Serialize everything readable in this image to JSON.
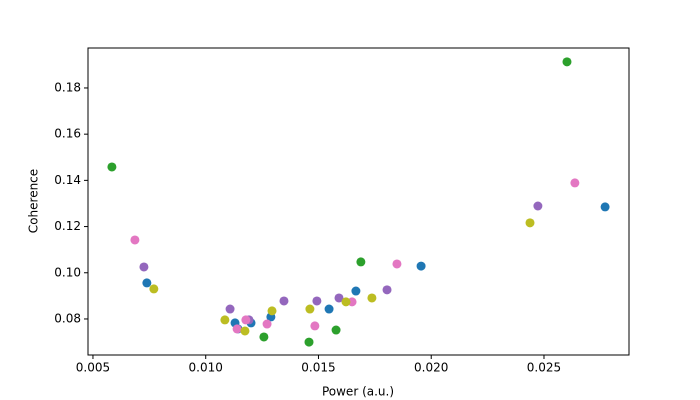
{
  "chart_data": {
    "type": "scatter",
    "xlabel": "Power (a.u.)",
    "ylabel": "Coherence",
    "xlim": [
      0.00478,
      0.02877
    ],
    "ylim": [
      0.0644,
      0.1973
    ],
    "xticks": [
      0.005,
      {
        "value": 0.01,
        "label": "0.010"
      },
      0.015,
      {
        "value": 0.02,
        "label": "0.020"
      },
      0.025
    ],
    "yticks": [
      0.08,
      {
        "value": 0.1,
        "label": "0.10"
      },
      0.12,
      0.14,
      0.16,
      0.18
    ],
    "grid": false,
    "series": [
      {
        "color": "#1f77b4",
        "x": [
          0.00739,
          0.0113,
          0.01143,
          0.01201,
          0.01289,
          0.01547,
          0.01666,
          0.01955,
          0.02771
        ],
        "values": [
          0.0956,
          0.0783,
          0.0757,
          0.0783,
          0.0809,
          0.0843,
          0.0921,
          0.1029,
          0.1285
        ]
      },
      {
        "color": "#2ca02c",
        "x": [
          0.00584,
          0.01258,
          0.01458,
          0.01578,
          0.01688,
          0.02602
        ],
        "values": [
          0.1458,
          0.0722,
          0.07,
          0.0752,
          0.1047,
          0.1913
        ]
      },
      {
        "color": "#9467bd",
        "x": [
          0.00726,
          0.01108,
          0.01192,
          0.01347,
          0.01493,
          0.01591,
          0.01804,
          0.02473
        ],
        "values": [
          0.1025,
          0.0843,
          0.0796,
          0.0878,
          0.0878,
          0.0891,
          0.0926,
          0.1289
        ]
      },
      {
        "color": "#e377c2",
        "x": [
          0.00686,
          0.01139,
          0.01178,
          0.01272,
          0.01484,
          0.01649,
          0.01848,
          0.02637
        ],
        "values": [
          0.1142,
          0.0757,
          0.0796,
          0.0778,
          0.077,
          0.0874,
          0.1038,
          0.1389
        ]
      },
      {
        "color": "#bcbd22",
        "x": [
          0.0077,
          0.01085,
          0.01174,
          0.01294,
          0.01462,
          0.01622,
          0.01737,
          0.02438
        ],
        "values": [
          0.093,
          0.0796,
          0.0748,
          0.0835,
          0.0843,
          0.0874,
          0.0891,
          0.1216
        ]
      }
    ]
  }
}
